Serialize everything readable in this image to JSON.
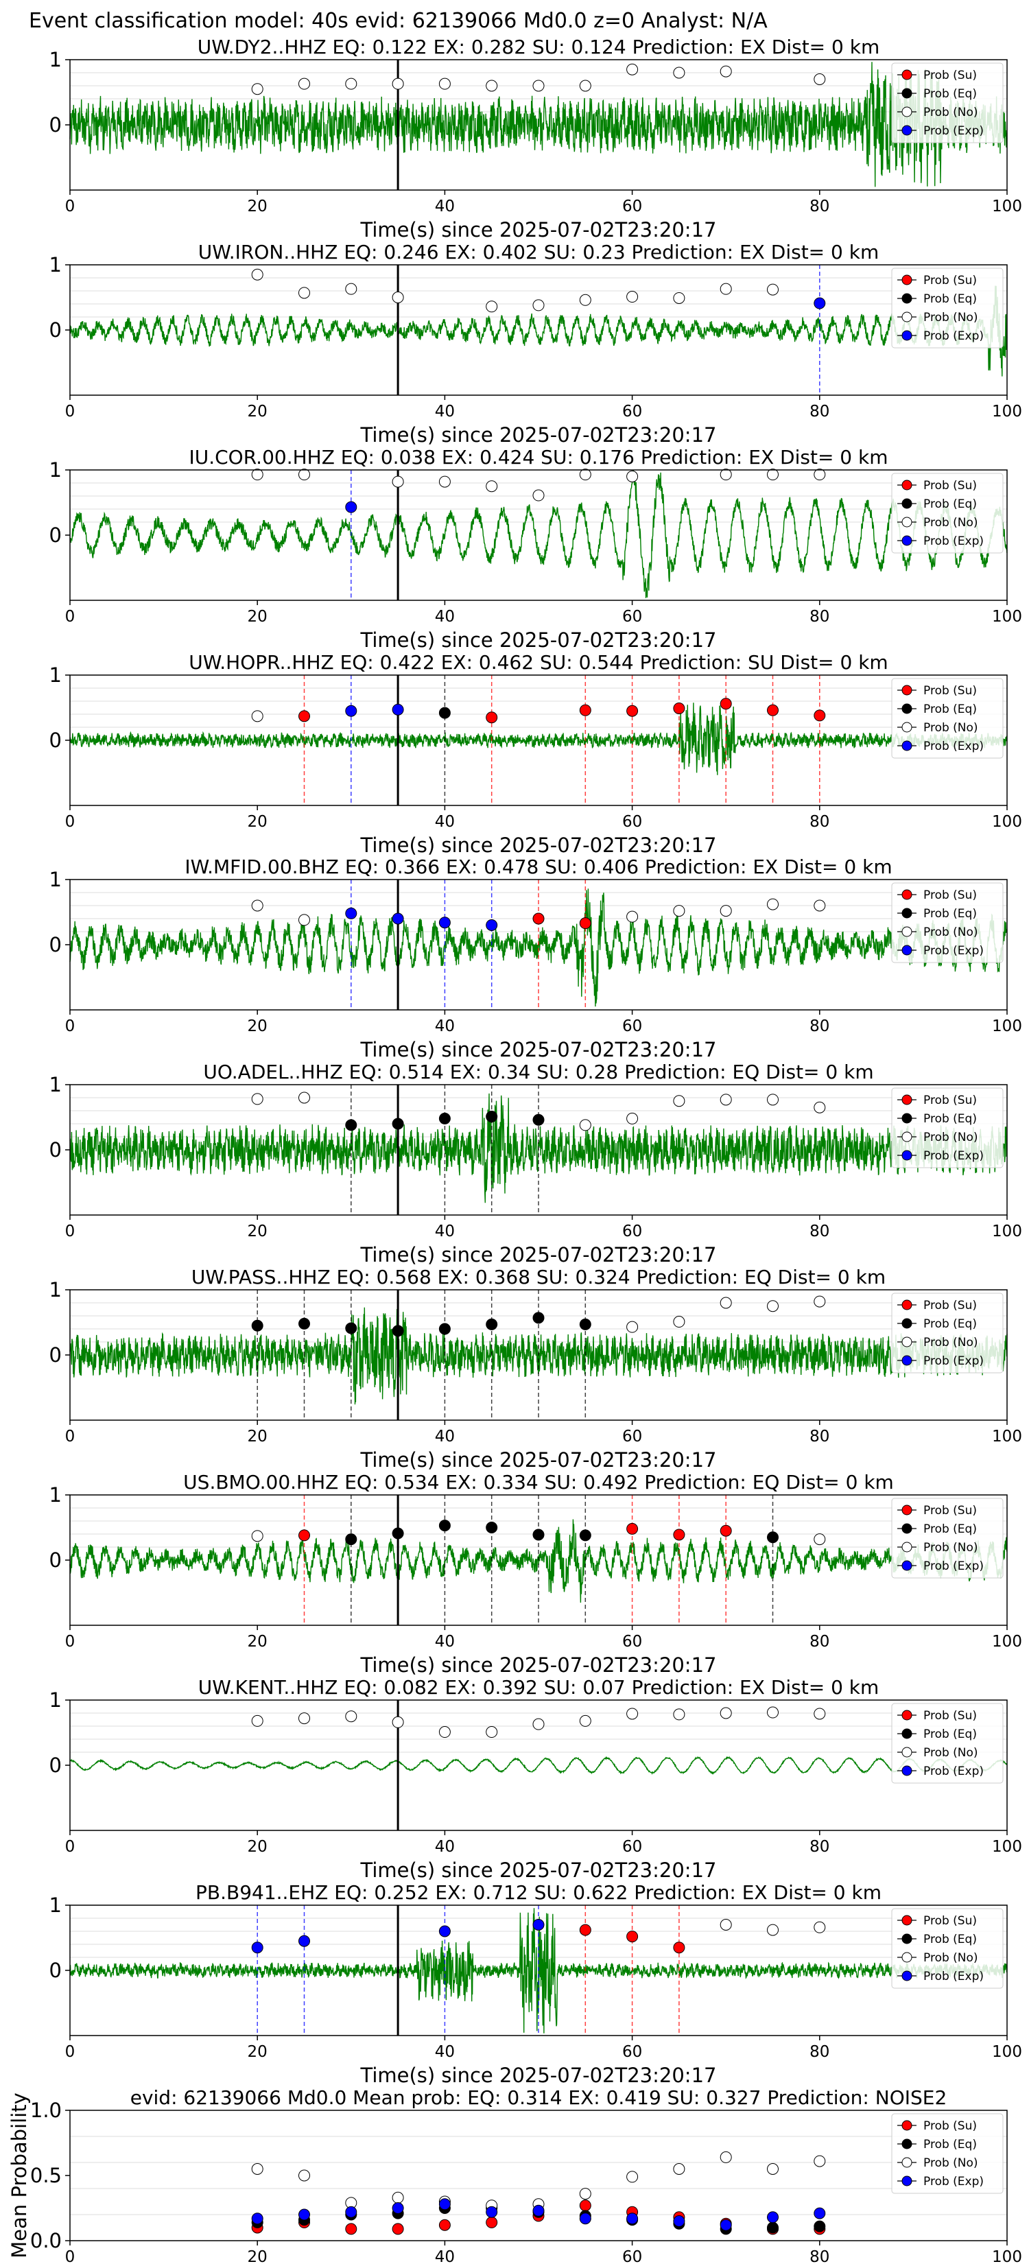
{
  "figure": {
    "suptitle": "Event classification model: 40s evid: 62139066 Md0.0 z=0 Analyst: N/A"
  },
  "legend_labels": [
    "Prob (Su)",
    "Prob (Eq)",
    "Prob (No)",
    "Prob (Exp)"
  ],
  "colors": {
    "waveform": "#008000",
    "su": "#ff0000",
    "eq": "#000000",
    "no": "#ffffff",
    "exp": "#0000ff",
    "pick_line": "#000000",
    "grid": "#dddddd"
  },
  "chart_data": [
    {
      "type": "line",
      "title": "UW.DY2..HHZ   EQ: 0.122  EX: 0.282  SU: 0.124   Prediction: EX    Dist= 0 km",
      "xlabel": "Time(s) since 2025-07-02T23:20:17",
      "ylabel": "",
      "xlim": [
        0,
        100
      ],
      "ylim": [
        -1,
        1
      ],
      "xticks": [
        0,
        20,
        40,
        60,
        80,
        100
      ],
      "yticks": [
        0,
        1
      ],
      "pick_time": 35,
      "wave": {
        "amp": 0.45,
        "freq": "high",
        "burst": [
          85,
          93,
          1.0
        ]
      },
      "points": [
        {
          "x": 20,
          "y": 0.55,
          "cls": "no"
        },
        {
          "x": 25,
          "y": 0.63,
          "cls": "no"
        },
        {
          "x": 30,
          "y": 0.63,
          "cls": "no"
        },
        {
          "x": 35,
          "y": 0.63,
          "cls": "no"
        },
        {
          "x": 40,
          "y": 0.63,
          "cls": "no"
        },
        {
          "x": 45,
          "y": 0.6,
          "cls": "no"
        },
        {
          "x": 50,
          "y": 0.6,
          "cls": "no"
        },
        {
          "x": 55,
          "y": 0.6,
          "cls": "no"
        },
        {
          "x": 60,
          "y": 0.85,
          "cls": "no"
        },
        {
          "x": 65,
          "y": 0.8,
          "cls": "no"
        },
        {
          "x": 70,
          "y": 0.82,
          "cls": "no"
        },
        {
          "x": 80,
          "y": 0.7,
          "cls": "no"
        }
      ]
    },
    {
      "type": "line",
      "title": "UW.IRON..HHZ   EQ: 0.246  EX: 0.402  SU: 0.23   Prediction: EX    Dist= 0 km",
      "xlabel": "Time(s) since 2025-07-02T23:20:17",
      "ylabel": "",
      "xlim": [
        0,
        100
      ],
      "ylim": [
        -1,
        1
      ],
      "xticks": [
        0,
        20,
        40,
        60,
        80,
        100
      ],
      "yticks": [
        0,
        1
      ],
      "pick_time": 35,
      "wave": {
        "amp": 0.22,
        "freq": "mid",
        "burst": [
          98,
          100,
          0.9
        ]
      },
      "points": [
        {
          "x": 20,
          "y": 0.85,
          "cls": "no"
        },
        {
          "x": 25,
          "y": 0.57,
          "cls": "no"
        },
        {
          "x": 30,
          "y": 0.63,
          "cls": "no"
        },
        {
          "x": 35,
          "y": 0.5,
          "cls": "no"
        },
        {
          "x": 45,
          "y": 0.36,
          "cls": "no"
        },
        {
          "x": 50,
          "y": 0.38,
          "cls": "no"
        },
        {
          "x": 55,
          "y": 0.46,
          "cls": "no"
        },
        {
          "x": 60,
          "y": 0.51,
          "cls": "no"
        },
        {
          "x": 65,
          "y": 0.49,
          "cls": "no"
        },
        {
          "x": 70,
          "y": 0.63,
          "cls": "no"
        },
        {
          "x": 75,
          "y": 0.62,
          "cls": "no"
        },
        {
          "x": 80,
          "y": 0.41,
          "cls": "exp"
        }
      ]
    },
    {
      "type": "line",
      "title": "IU.COR.00.HHZ   EQ: 0.038  EX: 0.424  SU: 0.176   Prediction: EX    Dist= 0 km",
      "xlabel": "Time(s) since 2025-07-02T23:20:17",
      "ylabel": "",
      "xlim": [
        0,
        100
      ],
      "ylim": [
        -1,
        1
      ],
      "xticks": [
        0,
        20,
        40,
        60,
        80,
        100
      ],
      "yticks": [
        0,
        1
      ],
      "pick_time": 35,
      "wave": {
        "amp": 0.55,
        "freq": "low",
        "burst": [
          59,
          64,
          1.0
        ]
      },
      "points": [
        {
          "x": 20,
          "y": 0.93,
          "cls": "no"
        },
        {
          "x": 25,
          "y": 0.93,
          "cls": "no"
        },
        {
          "x": 30,
          "y": 0.43,
          "cls": "exp"
        },
        {
          "x": 35,
          "y": 0.82,
          "cls": "no"
        },
        {
          "x": 40,
          "y": 0.82,
          "cls": "no"
        },
        {
          "x": 45,
          "y": 0.75,
          "cls": "no"
        },
        {
          "x": 50,
          "y": 0.61,
          "cls": "no"
        },
        {
          "x": 55,
          "y": 0.93,
          "cls": "no"
        },
        {
          "x": 60,
          "y": 0.9,
          "cls": "no"
        },
        {
          "x": 70,
          "y": 0.93,
          "cls": "no"
        },
        {
          "x": 75,
          "y": 0.93,
          "cls": "no"
        },
        {
          "x": 80,
          "y": 0.93,
          "cls": "no"
        }
      ]
    },
    {
      "type": "line",
      "title": "UW.HOPR..HHZ   EQ: 0.422  EX: 0.462  SU: 0.544   Prediction: SU    Dist= 0 km",
      "xlabel": "Time(s) since 2025-07-02T23:20:17",
      "ylabel": "",
      "xlim": [
        0,
        100
      ],
      "ylim": [
        -1,
        1
      ],
      "xticks": [
        0,
        20,
        40,
        60,
        80,
        100
      ],
      "yticks": [
        0,
        1
      ],
      "pick_time": 35,
      "wave": {
        "amp": 0.12,
        "freq": "high",
        "burst": [
          65,
          71,
          0.6
        ]
      },
      "points": [
        {
          "x": 20,
          "y": 0.37,
          "cls": "no"
        },
        {
          "x": 25,
          "y": 0.37,
          "cls": "su"
        },
        {
          "x": 30,
          "y": 0.45,
          "cls": "exp"
        },
        {
          "x": 35,
          "y": 0.47,
          "cls": "exp"
        },
        {
          "x": 40,
          "y": 0.42,
          "cls": "eq"
        },
        {
          "x": 45,
          "y": 0.35,
          "cls": "su"
        },
        {
          "x": 55,
          "y": 0.46,
          "cls": "su"
        },
        {
          "x": 60,
          "y": 0.45,
          "cls": "su"
        },
        {
          "x": 65,
          "y": 0.49,
          "cls": "su"
        },
        {
          "x": 70,
          "y": 0.56,
          "cls": "su"
        },
        {
          "x": 75,
          "y": 0.46,
          "cls": "su"
        },
        {
          "x": 80,
          "y": 0.38,
          "cls": "su"
        }
      ]
    },
    {
      "type": "line",
      "title": "IW.MFID.00.BHZ   EQ: 0.366  EX: 0.478  SU: 0.406   Prediction: EX    Dist= 0 km",
      "xlabel": "Time(s) since 2025-07-02T23:20:17",
      "ylabel": "",
      "xlim": [
        0,
        100
      ],
      "ylim": [
        -1,
        1
      ],
      "xticks": [
        0,
        20,
        40,
        60,
        80,
        100
      ],
      "yticks": [
        0,
        1
      ],
      "pick_time": 35,
      "wave": {
        "amp": 0.4,
        "freq": "mid",
        "burst": [
          54,
          57,
          1.0
        ]
      },
      "points": [
        {
          "x": 20,
          "y": 0.6,
          "cls": "no"
        },
        {
          "x": 25,
          "y": 0.38,
          "cls": "no"
        },
        {
          "x": 30,
          "y": 0.48,
          "cls": "exp"
        },
        {
          "x": 35,
          "y": 0.4,
          "cls": "exp"
        },
        {
          "x": 40,
          "y": 0.34,
          "cls": "exp"
        },
        {
          "x": 45,
          "y": 0.3,
          "cls": "exp"
        },
        {
          "x": 50,
          "y": 0.4,
          "cls": "su"
        },
        {
          "x": 55,
          "y": 0.33,
          "cls": "su"
        },
        {
          "x": 60,
          "y": 0.43,
          "cls": "no"
        },
        {
          "x": 65,
          "y": 0.52,
          "cls": "no"
        },
        {
          "x": 70,
          "y": 0.52,
          "cls": "no"
        },
        {
          "x": 75,
          "y": 0.62,
          "cls": "no"
        },
        {
          "x": 80,
          "y": 0.6,
          "cls": "no"
        }
      ]
    },
    {
      "type": "line",
      "title": "UO.ADEL..HHZ   EQ: 0.514  EX: 0.34  SU: 0.28   Prediction: EQ    Dist= 0 km",
      "xlabel": "Time(s) since 2025-07-02T23:20:17",
      "ylabel": "",
      "xlim": [
        0,
        100
      ],
      "ylim": [
        -1,
        1
      ],
      "xticks": [
        0,
        20,
        40,
        60,
        80,
        100
      ],
      "yticks": [
        0,
        1
      ],
      "pick_time": 35,
      "wave": {
        "amp": 0.4,
        "freq": "high",
        "burst": [
          44,
          47,
          0.9
        ]
      },
      "points": [
        {
          "x": 20,
          "y": 0.78,
          "cls": "no"
        },
        {
          "x": 25,
          "y": 0.8,
          "cls": "no"
        },
        {
          "x": 30,
          "y": 0.38,
          "cls": "eq"
        },
        {
          "x": 35,
          "y": 0.4,
          "cls": "eq"
        },
        {
          "x": 40,
          "y": 0.48,
          "cls": "eq"
        },
        {
          "x": 45,
          "y": 0.51,
          "cls": "eq"
        },
        {
          "x": 50,
          "y": 0.46,
          "cls": "eq"
        },
        {
          "x": 55,
          "y": 0.38,
          "cls": "no"
        },
        {
          "x": 60,
          "y": 0.48,
          "cls": "no"
        },
        {
          "x": 65,
          "y": 0.75,
          "cls": "no"
        },
        {
          "x": 70,
          "y": 0.77,
          "cls": "no"
        },
        {
          "x": 75,
          "y": 0.77,
          "cls": "no"
        },
        {
          "x": 80,
          "y": 0.65,
          "cls": "no"
        }
      ]
    },
    {
      "type": "line",
      "title": "UW.PASS..HHZ   EQ: 0.568  EX: 0.368  SU: 0.324   Prediction: EQ    Dist= 0 km",
      "xlabel": "Time(s) since 2025-07-02T23:20:17",
      "ylabel": "",
      "xlim": [
        0,
        100
      ],
      "ylim": [
        -1,
        1
      ],
      "xticks": [
        0,
        20,
        40,
        60,
        80,
        100
      ],
      "yticks": [
        0,
        1
      ],
      "pick_time": 35,
      "wave": {
        "amp": 0.35,
        "freq": "high",
        "burst": [
          30,
          36,
          0.8
        ]
      },
      "points": [
        {
          "x": 20,
          "y": 0.45,
          "cls": "eq"
        },
        {
          "x": 25,
          "y": 0.48,
          "cls": "eq"
        },
        {
          "x": 30,
          "y": 0.41,
          "cls": "eq"
        },
        {
          "x": 35,
          "y": 0.37,
          "cls": "eq"
        },
        {
          "x": 40,
          "y": 0.4,
          "cls": "eq"
        },
        {
          "x": 45,
          "y": 0.47,
          "cls": "eq"
        },
        {
          "x": 50,
          "y": 0.57,
          "cls": "eq"
        },
        {
          "x": 55,
          "y": 0.47,
          "cls": "eq"
        },
        {
          "x": 60,
          "y": 0.43,
          "cls": "no"
        },
        {
          "x": 65,
          "y": 0.51,
          "cls": "no"
        },
        {
          "x": 70,
          "y": 0.8,
          "cls": "no"
        },
        {
          "x": 75,
          "y": 0.75,
          "cls": "no"
        },
        {
          "x": 80,
          "y": 0.82,
          "cls": "no"
        }
      ]
    },
    {
      "type": "line",
      "title": "US.BMO.00.HHZ   EQ: 0.534  EX: 0.334  SU: 0.492   Prediction: EQ    Dist= 0 km",
      "xlabel": "Time(s) since 2025-07-02T23:20:17",
      "ylabel": "",
      "xlim": [
        0,
        100
      ],
      "ylim": [
        -1,
        1
      ],
      "xticks": [
        0,
        20,
        40,
        60,
        80,
        100
      ],
      "yticks": [
        0,
        1
      ],
      "pick_time": 35,
      "wave": {
        "amp": 0.3,
        "freq": "mid",
        "burst": [
          51,
          55,
          0.8
        ]
      },
      "points": [
        {
          "x": 20,
          "y": 0.37,
          "cls": "no"
        },
        {
          "x": 25,
          "y": 0.38,
          "cls": "su"
        },
        {
          "x": 30,
          "y": 0.32,
          "cls": "eq"
        },
        {
          "x": 35,
          "y": 0.41,
          "cls": "eq"
        },
        {
          "x": 40,
          "y": 0.53,
          "cls": "eq"
        },
        {
          "x": 45,
          "y": 0.5,
          "cls": "eq"
        },
        {
          "x": 50,
          "y": 0.39,
          "cls": "eq"
        },
        {
          "x": 55,
          "y": 0.38,
          "cls": "eq"
        },
        {
          "x": 60,
          "y": 0.48,
          "cls": "su"
        },
        {
          "x": 65,
          "y": 0.39,
          "cls": "su"
        },
        {
          "x": 70,
          "y": 0.45,
          "cls": "su"
        },
        {
          "x": 75,
          "y": 0.35,
          "cls": "eq"
        },
        {
          "x": 80,
          "y": 0.32,
          "cls": "no"
        }
      ]
    },
    {
      "type": "line",
      "title": "UW.KENT..HHZ   EQ: 0.082  EX: 0.392  SU: 0.07   Prediction: EX    Dist= 0 km",
      "xlabel": "Time(s) since 2025-07-02T23:20:17",
      "ylabel": "",
      "xlim": [
        0,
        100
      ],
      "ylim": [
        -1,
        1
      ],
      "xticks": [
        0,
        20,
        40,
        60,
        80,
        100
      ],
      "yticks": [
        0,
        1
      ],
      "pick_time": 35,
      "wave": {
        "amp": 0.13,
        "freq": "smooth",
        "burst": null
      },
      "points": [
        {
          "x": 20,
          "y": 0.68,
          "cls": "no"
        },
        {
          "x": 25,
          "y": 0.72,
          "cls": "no"
        },
        {
          "x": 30,
          "y": 0.75,
          "cls": "no"
        },
        {
          "x": 35,
          "y": 0.66,
          "cls": "no"
        },
        {
          "x": 40,
          "y": 0.51,
          "cls": "no"
        },
        {
          "x": 45,
          "y": 0.51,
          "cls": "no"
        },
        {
          "x": 50,
          "y": 0.63,
          "cls": "no"
        },
        {
          "x": 55,
          "y": 0.68,
          "cls": "no"
        },
        {
          "x": 60,
          "y": 0.79,
          "cls": "no"
        },
        {
          "x": 65,
          "y": 0.78,
          "cls": "no"
        },
        {
          "x": 70,
          "y": 0.8,
          "cls": "no"
        },
        {
          "x": 75,
          "y": 0.81,
          "cls": "no"
        },
        {
          "x": 80,
          "y": 0.79,
          "cls": "no"
        }
      ]
    },
    {
      "type": "line",
      "title": "PB.B941..EHZ   EQ: 0.252  EX: 0.712  SU: 0.622   Prediction: EX    Dist= 0 km",
      "xlabel": "Time(s) since 2025-07-02T23:20:17",
      "ylabel": "",
      "xlim": [
        0,
        100
      ],
      "ylim": [
        -1,
        1
      ],
      "xticks": [
        0,
        20,
        40,
        60,
        80,
        100
      ],
      "yticks": [
        0,
        1
      ],
      "pick_time": 35,
      "wave": {
        "amp": 0.12,
        "freq": "high",
        "burst": [
          37,
          43,
          0.5
        ],
        "burst2": [
          48,
          52,
          1.0
        ]
      },
      "points": [
        {
          "x": 20,
          "y": 0.35,
          "cls": "exp"
        },
        {
          "x": 25,
          "y": 0.45,
          "cls": "exp"
        },
        {
          "x": 40,
          "y": 0.6,
          "cls": "exp"
        },
        {
          "x": 50,
          "y": 0.7,
          "cls": "exp"
        },
        {
          "x": 55,
          "y": 0.62,
          "cls": "su"
        },
        {
          "x": 60,
          "y": 0.52,
          "cls": "su"
        },
        {
          "x": 65,
          "y": 0.35,
          "cls": "su"
        },
        {
          "x": 70,
          "y": 0.7,
          "cls": "no"
        },
        {
          "x": 75,
          "y": 0.62,
          "cls": "no"
        },
        {
          "x": 80,
          "y": 0.66,
          "cls": "no"
        }
      ]
    },
    {
      "type": "scatter",
      "title": "evid: 62139066  Md0.0   Mean prob:   EQ: 0.314  EX: 0.419  SU: 0.327   Prediction: NOISE2",
      "xlabel": "",
      "ylabel": "Mean Probability",
      "xlim": [
        0,
        100
      ],
      "ylim": [
        0,
        1
      ],
      "xticks": [
        0,
        20,
        40,
        60,
        80,
        100
      ],
      "yticks": [
        0.0,
        0.5,
        1.0
      ],
      "x": [
        20,
        25,
        30,
        35,
        40,
        45,
        50,
        55,
        60,
        65,
        70,
        75,
        80
      ],
      "series": [
        {
          "name": "Prob (Su)",
          "cls": "su",
          "values": [
            0.1,
            0.14,
            0.09,
            0.09,
            0.12,
            0.14,
            0.19,
            0.27,
            0.22,
            0.18,
            0.13,
            0.09,
            0.09
          ]
        },
        {
          "name": "Prob (Eq)",
          "cls": "eq",
          "values": [
            0.14,
            0.16,
            0.2,
            0.21,
            0.25,
            0.25,
            0.22,
            0.19,
            0.16,
            0.13,
            0.09,
            0.1,
            0.11
          ]
        },
        {
          "name": "Prob (No)",
          "cls": "no",
          "values": [
            0.55,
            0.5,
            0.29,
            0.33,
            0.3,
            0.27,
            0.28,
            0.36,
            0.49,
            0.55,
            0.64,
            0.55,
            0.61
          ]
        },
        {
          "name": "Prob (Exp)",
          "cls": "exp",
          "values": [
            0.17,
            0.2,
            0.22,
            0.25,
            0.28,
            0.22,
            0.23,
            0.17,
            0.17,
            0.15,
            0.12,
            0.18,
            0.21
          ]
        }
      ]
    }
  ]
}
